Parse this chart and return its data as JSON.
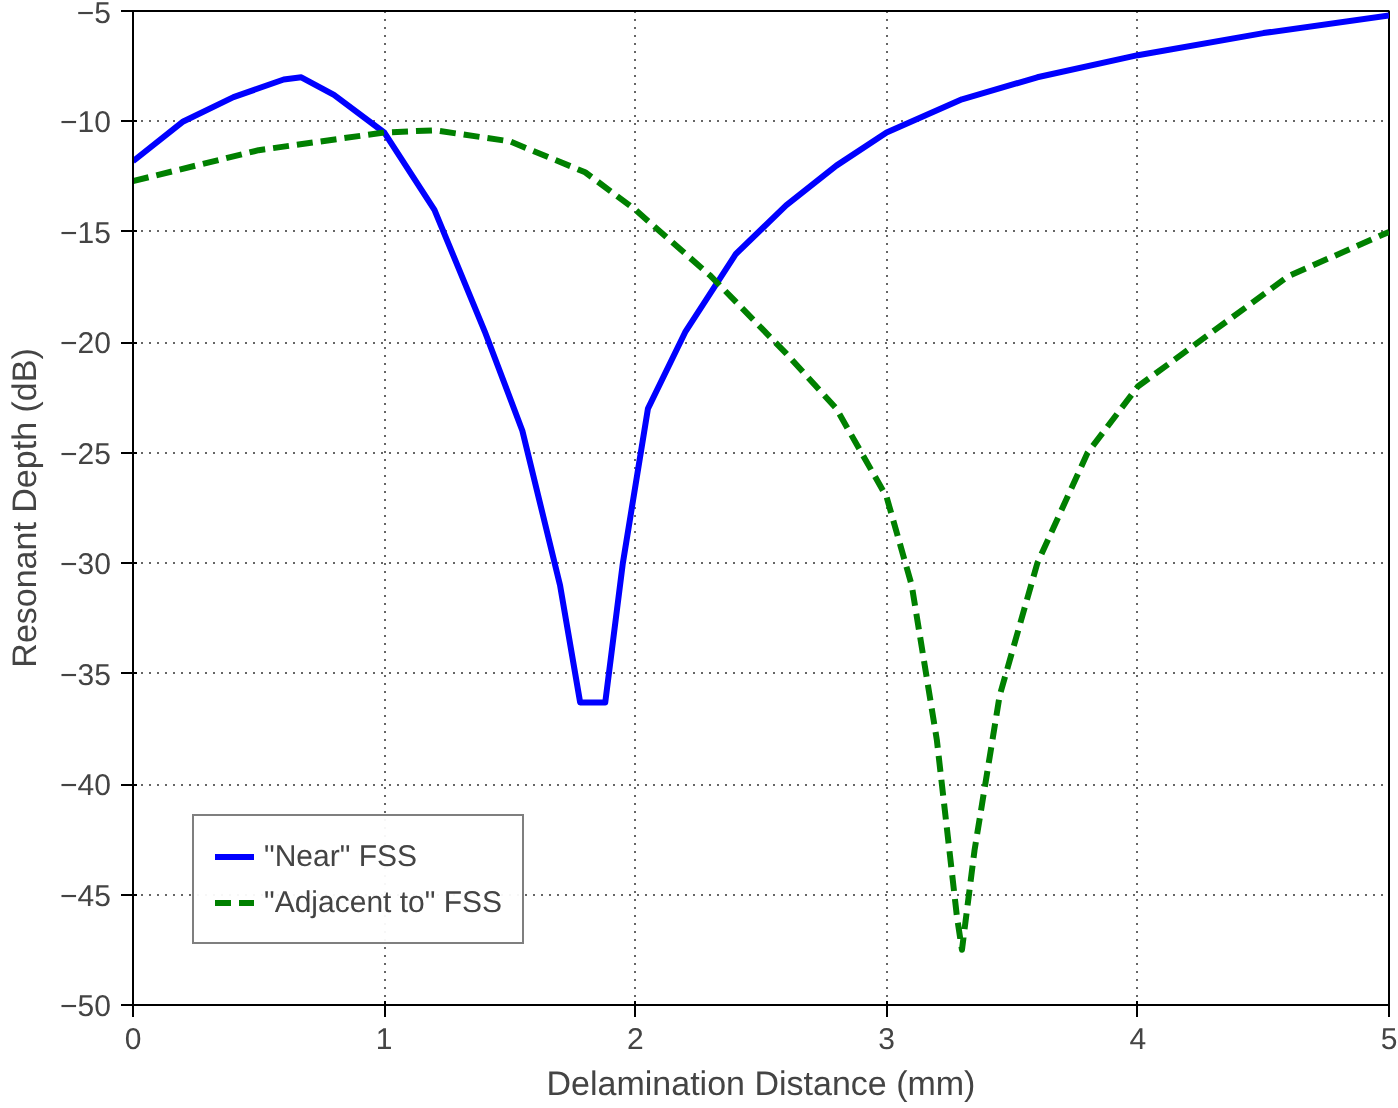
{
  "chart_data": {
    "type": "line",
    "xlabel": "Delamination Distance (mm)",
    "ylabel": "Resonant Depth (dB)",
    "xlim": [
      0,
      5
    ],
    "ylim": [
      -50,
      -5
    ],
    "xticks": [
      0,
      1,
      2,
      3,
      4,
      5
    ],
    "yticks": [
      -50,
      -45,
      -40,
      -35,
      -30,
      -25,
      -20,
      -15,
      -10,
      -5
    ],
    "grid": true,
    "legend": "bottom left",
    "marker": "none",
    "series": [
      {
        "name": "\"Near\" FSS",
        "color": "#0000ff",
        "line_style": "solid",
        "x": [
          0,
          0.2,
          0.4,
          0.6,
          0.67,
          0.8,
          1.0,
          1.2,
          1.4,
          1.55,
          1.7,
          1.78,
          1.88,
          1.95,
          2.05,
          2.2,
          2.4,
          2.6,
          2.8,
          3.0,
          3.3,
          3.6,
          4.0,
          4.5,
          5.0
        ],
        "values": [
          -11.8,
          -10,
          -8.9,
          -8.1,
          -8,
          -8.8,
          -10.5,
          -14,
          -19.5,
          -24,
          -31,
          -36.3,
          -36.3,
          -30,
          -23,
          -19.5,
          -16,
          -13.8,
          -12,
          -10.5,
          -9,
          -8,
          -7,
          -6,
          -5.2
        ]
      },
      {
        "name": "\"Adjacent to\" FSS",
        "color": "#008000",
        "line_style": "dashed",
        "x": [
          0,
          0.5,
          1.0,
          1.2,
          1.5,
          1.8,
          2.0,
          2.3,
          2.6,
          2.8,
          3.0,
          3.1,
          3.2,
          3.28,
          3.3,
          3.35,
          3.45,
          3.6,
          3.8,
          4.0,
          4.3,
          4.6,
          5.0
        ],
        "values": [
          -12.7,
          -11.3,
          -10.5,
          -10.4,
          -10.9,
          -12.3,
          -14,
          -17,
          -20.5,
          -23,
          -27,
          -31,
          -38,
          -46,
          -47.5,
          -43,
          -36,
          -30,
          -25,
          -22,
          -19.5,
          -17,
          -15
        ]
      }
    ]
  }
}
